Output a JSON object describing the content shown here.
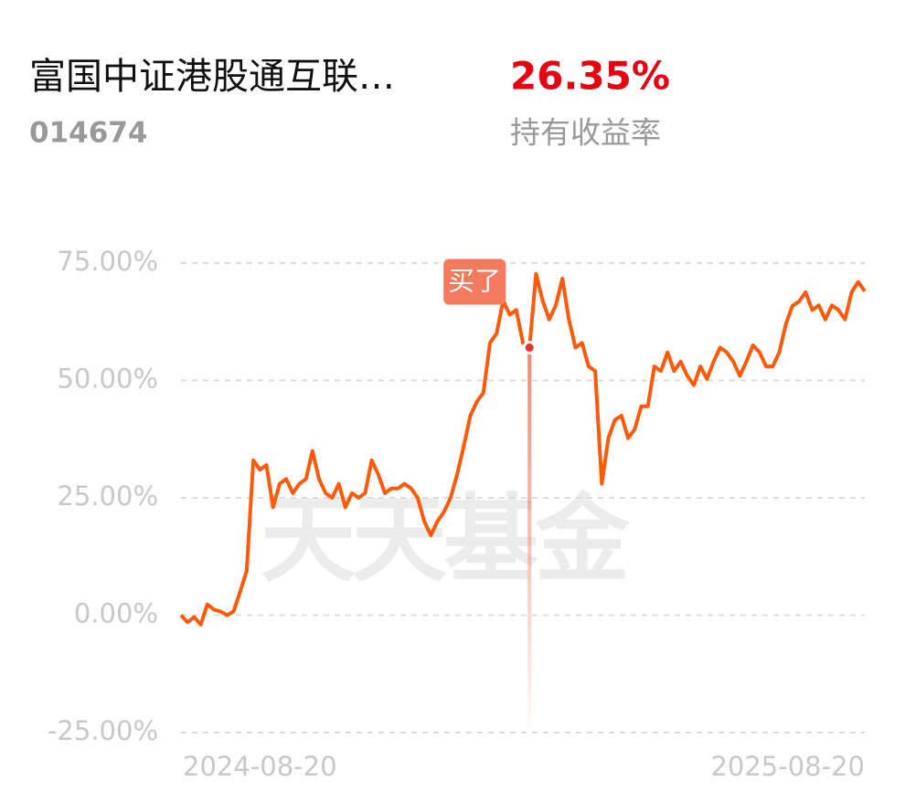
{
  "header": {
    "title": "富国中证港股通互联…",
    "code": "014674",
    "return": "26.35%",
    "return_label": "持有收益率"
  },
  "chart_data": {
    "type": "line",
    "watermark": "天天基金",
    "annotation": "买了",
    "color": "#ff5a0a",
    "grid": true,
    "ylim": [
      -25,
      75
    ],
    "yticks": [
      {
        "value": -25,
        "label": "-25.00%"
      },
      {
        "value": 0,
        "label": "0.00%"
      },
      {
        "value": 25,
        "label": "25.00%"
      },
      {
        "value": 50,
        "label": "50.00%"
      },
      {
        "value": 75,
        "label": "75.00%"
      }
    ],
    "categories": [
      "2024-08-20",
      null,
      null,
      null,
      null,
      null,
      null,
      null,
      null,
      null,
      null,
      null,
      null,
      null,
      null,
      null,
      null,
      null,
      null,
      null,
      null,
      null,
      null,
      null,
      null,
      null,
      null,
      null,
      null,
      null,
      null,
      null,
      null,
      null,
      null,
      null,
      null,
      null,
      null,
      null,
      null,
      null,
      null,
      null,
      null,
      null,
      null,
      null,
      null,
      null,
      null,
      null,
      null,
      null,
      null,
      null,
      null,
      null,
      null,
      null,
      null,
      null,
      null,
      null,
      null,
      null,
      null,
      null,
      null,
      null,
      null,
      null,
      null,
      null,
      null,
      null,
      null,
      null,
      null,
      null,
      null,
      null,
      null,
      null,
      null,
      null,
      null,
      null,
      null,
      null,
      null,
      null,
      null,
      null,
      null,
      null,
      null,
      null,
      null,
      null,
      null,
      null,
      null,
      null,
      "2025-08-20"
    ],
    "values": [
      0,
      -1.5,
      -0.4,
      -2,
      2.3,
      1.2,
      0.8,
      0,
      0.8,
      5,
      9.5,
      33,
      31,
      32,
      23,
      28,
      29,
      26,
      28,
      29,
      35,
      29,
      26,
      25,
      28,
      23,
      26,
      25,
      26,
      33,
      30,
      26,
      27,
      27,
      28,
      27,
      25,
      20,
      17,
      20,
      22,
      25,
      30,
      36,
      42.5,
      45.5,
      47.4,
      58,
      60,
      67,
      64,
      65,
      58,
      57,
      72.7,
      67,
      63,
      66,
      71.7,
      63,
      57,
      58,
      53,
      52,
      28,
      37.7,
      41.6,
      42.5,
      37.7,
      39.6,
      44.5,
      44.5,
      53,
      52,
      56,
      52,
      54,
      51,
      49,
      53,
      50.3,
      54,
      57,
      56,
      54,
      51,
      54,
      57.5,
      56,
      53,
      53,
      56,
      62,
      65.9,
      66.8,
      68.8,
      65,
      66,
      63,
      66,
      65,
      63,
      68.8,
      71,
      69
    ]
  }
}
